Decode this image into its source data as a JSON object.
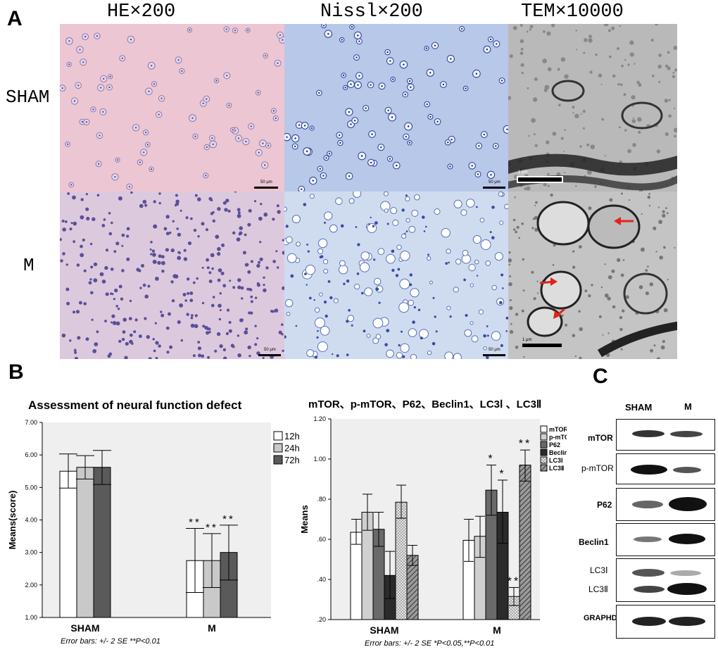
{
  "panel_a": {
    "letter": "A",
    "columns": [
      "HE×200",
      "Nissl×200",
      "TEM×10000"
    ],
    "rows": [
      "SHAM",
      "M"
    ],
    "scale_labels": {
      "light": "50 μm",
      "tem": "1 μm"
    }
  },
  "panel_b": {
    "letter": "B"
  },
  "panel_c": {
    "letter": "C",
    "lanes": [
      "SHAM",
      "M"
    ],
    "blots": [
      "mTOR",
      "p-mTOR",
      "P62",
      "Beclin1",
      "LC3Ⅰ",
      "LC3Ⅱ",
      "GRAPHD"
    ]
  },
  "chart_data": [
    {
      "type": "bar",
      "title": "Assessment of neural function defect",
      "ylabel": "Means(score)",
      "xlabel": "",
      "categories": [
        "SHAM",
        "M"
      ],
      "ylim": [
        1.0,
        7.0
      ],
      "yticks": [
        "1.00",
        "2.00",
        "3.00",
        "4.00",
        "5.00",
        "6.00",
        "7.00"
      ],
      "series": [
        {
          "name": "12h",
          "color": "#ffffff",
          "values": [
            5.5,
            2.75
          ],
          "err_low": [
            4.98,
            1.77
          ],
          "err_high": [
            6.03,
            3.74
          ],
          "sig": [
            "",
            "**"
          ]
        },
        {
          "name": "24h",
          "color": "#c9c9c9",
          "values": [
            5.62,
            2.75
          ],
          "err_low": [
            5.26,
            1.92
          ],
          "err_high": [
            5.98,
            3.58
          ],
          "sig": [
            "",
            "**"
          ]
        },
        {
          "name": "72h",
          "color": "#5a5a5a",
          "values": [
            5.62,
            3.0
          ],
          "err_low": [
            5.09,
            2.15
          ],
          "err_high": [
            6.14,
            3.84
          ],
          "sig": [
            "",
            "**"
          ]
        }
      ],
      "footnote": "Error bars: +/- 2 SE   **P<0.01",
      "legend": "top-right",
      "background": "#efefef"
    },
    {
      "type": "bar",
      "title": "mTOR、p-mTOR、P62、Beclin1、LC3Ⅰ 、LC3Ⅱ",
      "ylabel": "Means",
      "xlabel": "",
      "categories": [
        "SHAM",
        "M"
      ],
      "ylim": [
        0.2,
        1.2
      ],
      "yticks": [
        ".20",
        ".40",
        ".60",
        ".80",
        "1.00",
        "1.20"
      ],
      "series": [
        {
          "name": "mTOR",
          "color": "#ffffff",
          "pattern": "none",
          "values": [
            0.635,
            0.595
          ],
          "err_low": [
            0.575,
            0.49
          ],
          "err_high": [
            0.7,
            0.7
          ],
          "sig": [
            "",
            ""
          ]
        },
        {
          "name": "p-mTOR",
          "color": "#d0d0d0",
          "pattern": "none",
          "values": [
            0.735,
            0.615
          ],
          "err_low": [
            0.645,
            0.51
          ],
          "err_high": [
            0.825,
            0.715
          ],
          "sig": [
            "",
            ""
          ]
        },
        {
          "name": "P62",
          "color": "#6a6a6a",
          "pattern": "none",
          "values": [
            0.65,
            0.845
          ],
          "err_low": [
            0.565,
            0.72
          ],
          "err_high": [
            0.735,
            0.97
          ],
          "sig": [
            "",
            "*"
          ]
        },
        {
          "name": "Beclin1",
          "color": "#2b2b2b",
          "pattern": "none",
          "values": [
            0.42,
            0.735
          ],
          "err_low": [
            0.305,
            0.58
          ],
          "err_high": [
            0.54,
            0.895
          ],
          "sig": [
            "",
            "*"
          ]
        },
        {
          "name": "LC3Ⅰ",
          "color": "#e3e3e3",
          "pattern": "dots",
          "values": [
            0.785,
            0.315
          ],
          "err_low": [
            0.705,
            0.27
          ],
          "err_high": [
            0.87,
            0.36
          ],
          "sig": [
            "",
            "**"
          ]
        },
        {
          "name": "LC3Ⅱ",
          "color": "#7a7a7a",
          "pattern": "hatch",
          "values": [
            0.52,
            0.97
          ],
          "err_low": [
            0.47,
            0.89
          ],
          "err_high": [
            0.57,
            1.045
          ],
          "sig": [
            "",
            "**"
          ]
        }
      ],
      "footnote": "Error bars: +/- 2 SE   *P<0.05,**P<0.01",
      "legend": "top-right",
      "background": "#efefef"
    }
  ]
}
